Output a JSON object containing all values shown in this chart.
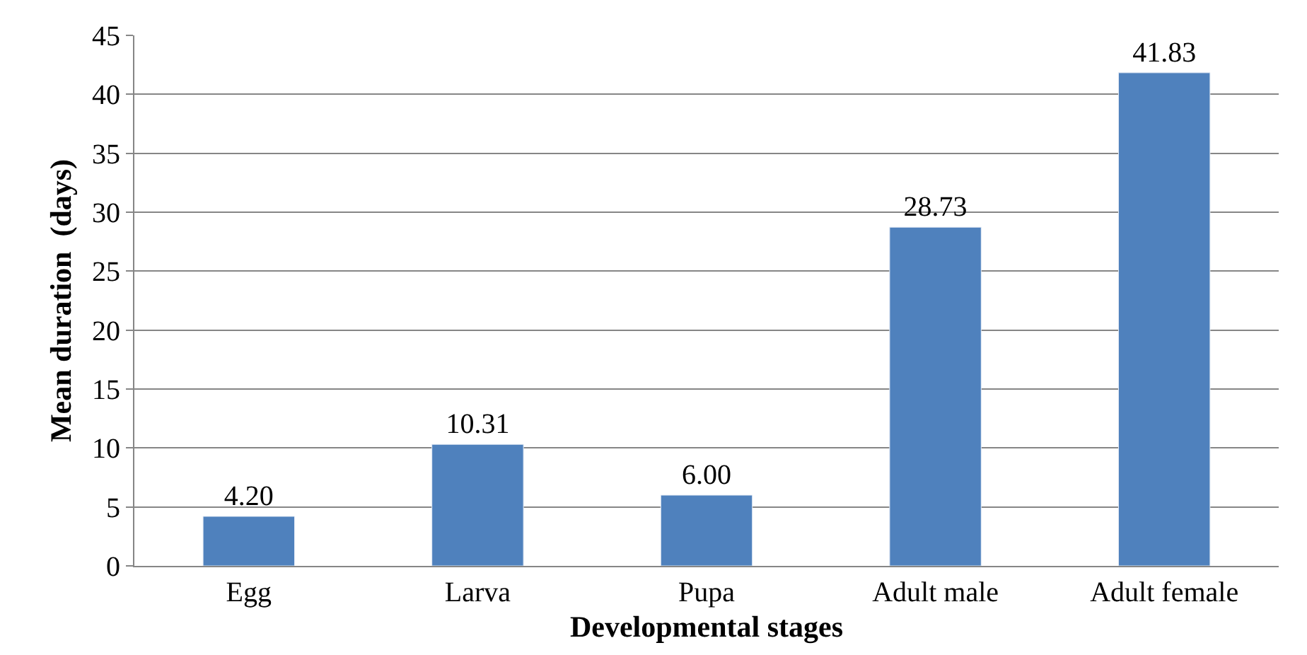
{
  "chart_data": {
    "type": "bar",
    "xlabel": "Developmental stages",
    "ylabel": "Mean duration  (days)",
    "categories": [
      "Egg",
      "Larva",
      "Pupa",
      "Adult male",
      "Adult female"
    ],
    "values": [
      4.2,
      10.31,
      6.0,
      28.73,
      41.83
    ],
    "value_labels": [
      "4.20",
      "10.31",
      "6.00",
      "28.73",
      "41.83"
    ],
    "color": "#4f81bd",
    "ylim": [
      0,
      45
    ],
    "yticks": [
      0,
      5,
      10,
      15,
      20,
      25,
      30,
      35,
      40,
      45
    ],
    "grid": "y"
  }
}
